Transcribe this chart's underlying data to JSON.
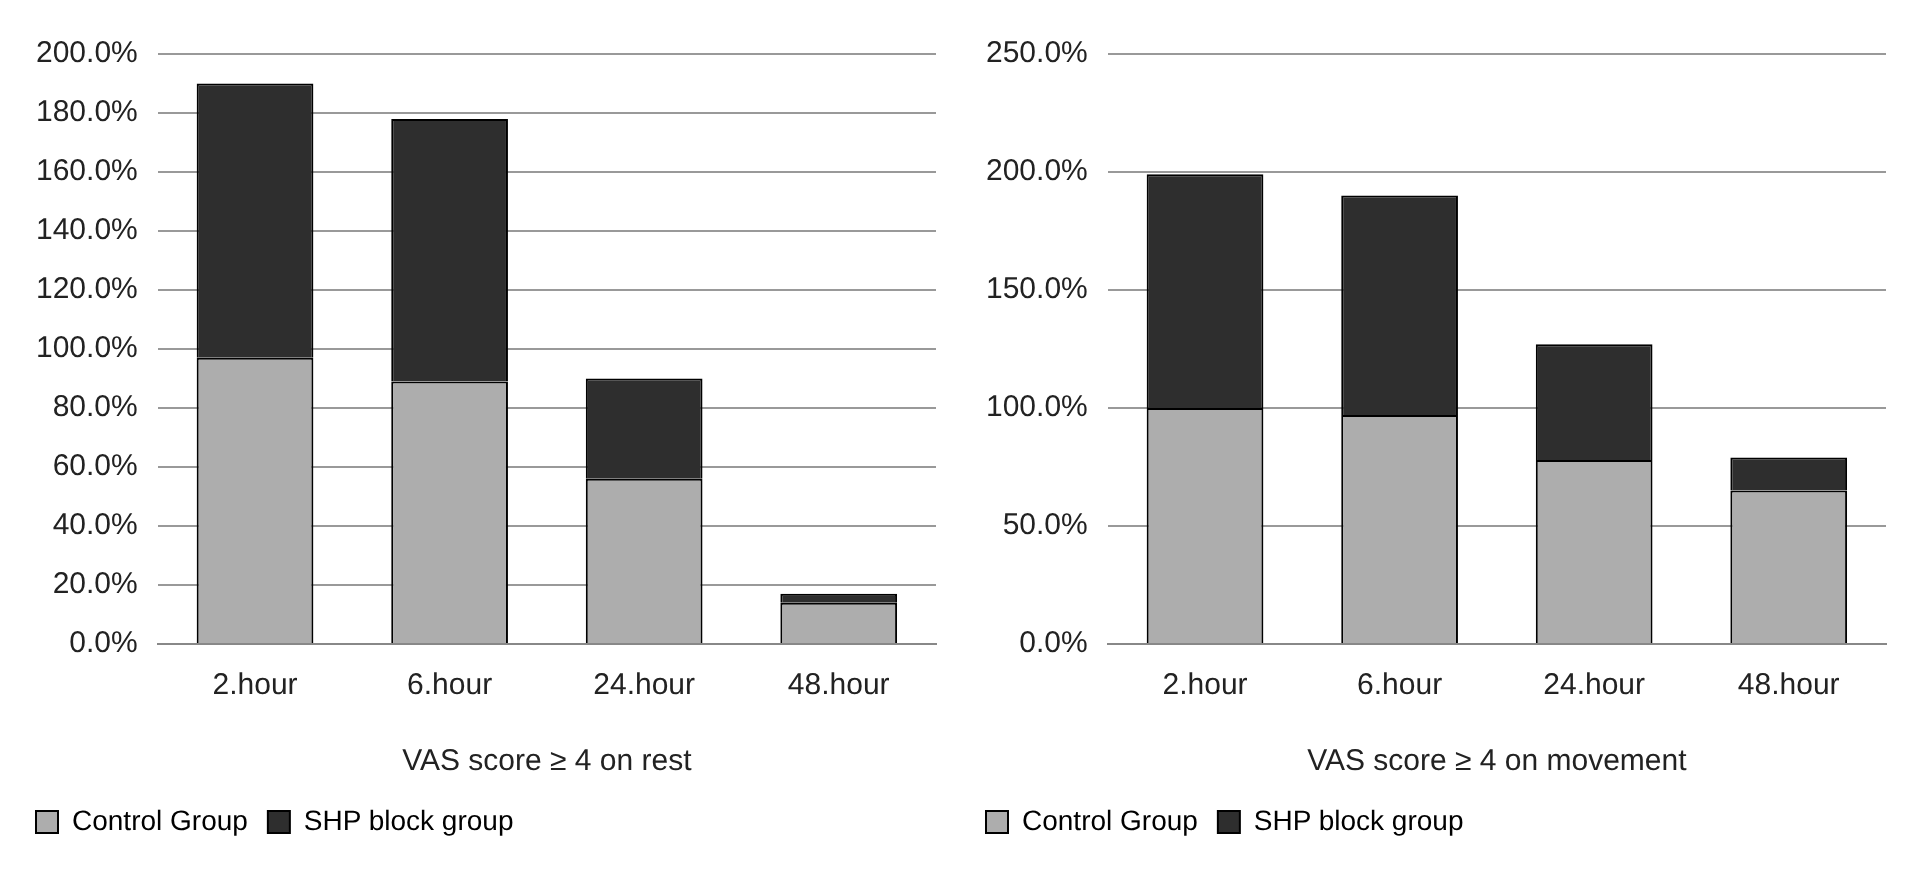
{
  "chart_data": [
    {
      "type": "bar",
      "stacked": true,
      "categories": [
        "2.hour",
        "6.hour",
        "24.hour",
        "48.hour"
      ],
      "xlabel": "VAS score ≥ 4 on rest",
      "series": [
        {
          "name": "Control Group",
          "color": "#adadad",
          "values": [
            97,
            89,
            56,
            14
          ]
        },
        {
          "name": "SHP block group",
          "color": "#2e2e2e",
          "values": [
            93,
            89,
            34,
            3
          ]
        }
      ],
      "ylim": [
        0,
        200
      ],
      "yticks": [
        {
          "value": 0,
          "label": "0.0%"
        },
        {
          "value": 20,
          "label": "20.0%"
        },
        {
          "value": 40,
          "label": "40.0%"
        },
        {
          "value": 60,
          "label": "60.0%"
        },
        {
          "value": 80,
          "label": "80.0%"
        },
        {
          "value": 100,
          "label": "100.0%"
        },
        {
          "value": 120,
          "label": "120.0%"
        },
        {
          "value": 140,
          "label": "140.0%"
        },
        {
          "value": 160,
          "label": "160.0%"
        },
        {
          "value": 180,
          "label": "180.0%"
        },
        {
          "value": 200,
          "label": "200.0%"
        }
      ],
      "grid": "y",
      "legend": "bottom"
    },
    {
      "type": "bar",
      "stacked": true,
      "categories": [
        "2.hour",
        "6.hour",
        "24.hour",
        "48.hour"
      ],
      "xlabel": "VAS score ≥ 4 on movement",
      "series": [
        {
          "name": "Control Group",
          "color": "#adadad",
          "values": [
            100,
            97,
            78,
            65
          ]
        },
        {
          "name": "SHP block group",
          "color": "#2e2e2e",
          "values": [
            99,
            93,
            49,
            14
          ]
        }
      ],
      "ylim": [
        0,
        250
      ],
      "yticks": [
        {
          "value": 0,
          "label": "0.0%"
        },
        {
          "value": 50,
          "label": "50.0%"
        },
        {
          "value": 100,
          "label": "100.0%"
        },
        {
          "value": 150,
          "label": "150.0%"
        },
        {
          "value": 200,
          "label": "200.0%"
        },
        {
          "value": 250,
          "label": "250.0%"
        }
      ],
      "grid": "y",
      "legend": "bottom"
    }
  ]
}
